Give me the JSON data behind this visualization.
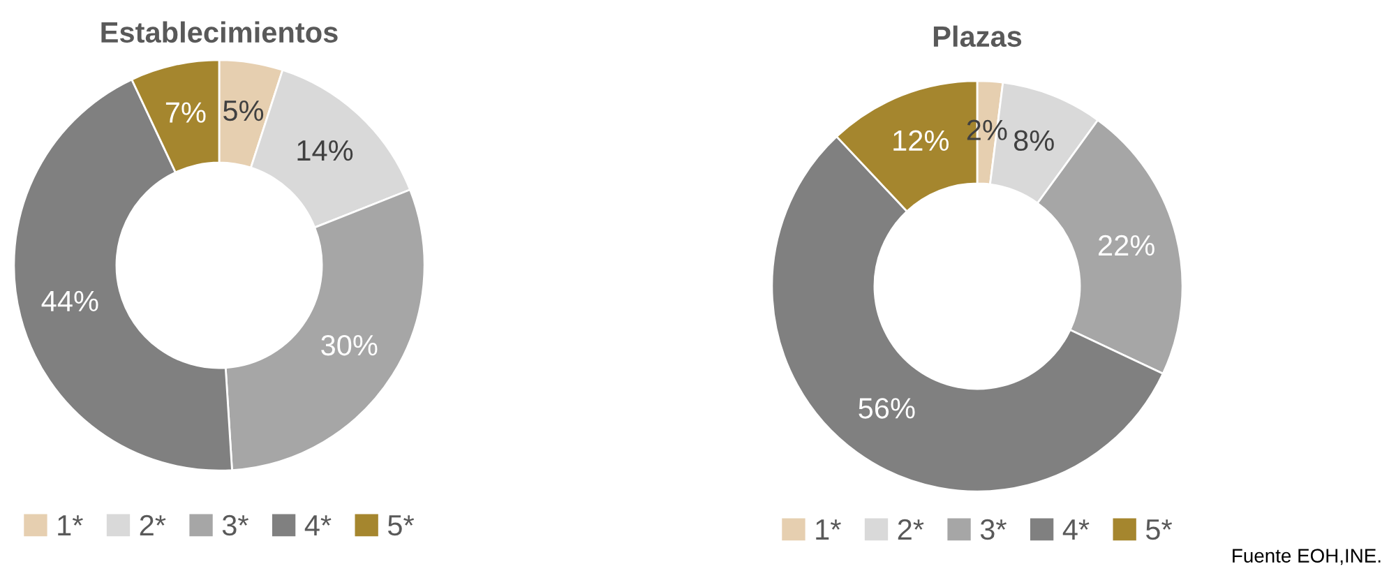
{
  "chart_data": [
    {
      "type": "donut",
      "title": "Establecimientos",
      "categories": [
        "1*",
        "2*",
        "3*",
        "4*",
        "5*"
      ],
      "values": [
        5,
        14,
        30,
        44,
        7
      ],
      "value_labels": [
        "5%",
        "14%",
        "30%",
        "44%",
        "7%"
      ],
      "colors": [
        "#e6cfb0",
        "#d9d9d9",
        "#a6a6a6",
        "#808080",
        "#a5862e"
      ],
      "legend": "bottom"
    },
    {
      "type": "donut",
      "title": "Plazas",
      "categories": [
        "1*",
        "2*",
        "3*",
        "4*",
        "5*"
      ],
      "values": [
        2,
        8,
        22,
        56,
        12
      ],
      "value_labels": [
        "2%",
        "8%",
        "22%",
        "56%",
        "12%"
      ],
      "colors": [
        "#e6cfb0",
        "#d9d9d9",
        "#a6a6a6",
        "#808080",
        "#a5862e"
      ],
      "legend": "bottom",
      "annotations": [
        "Fuente EOH,INE."
      ]
    }
  ]
}
